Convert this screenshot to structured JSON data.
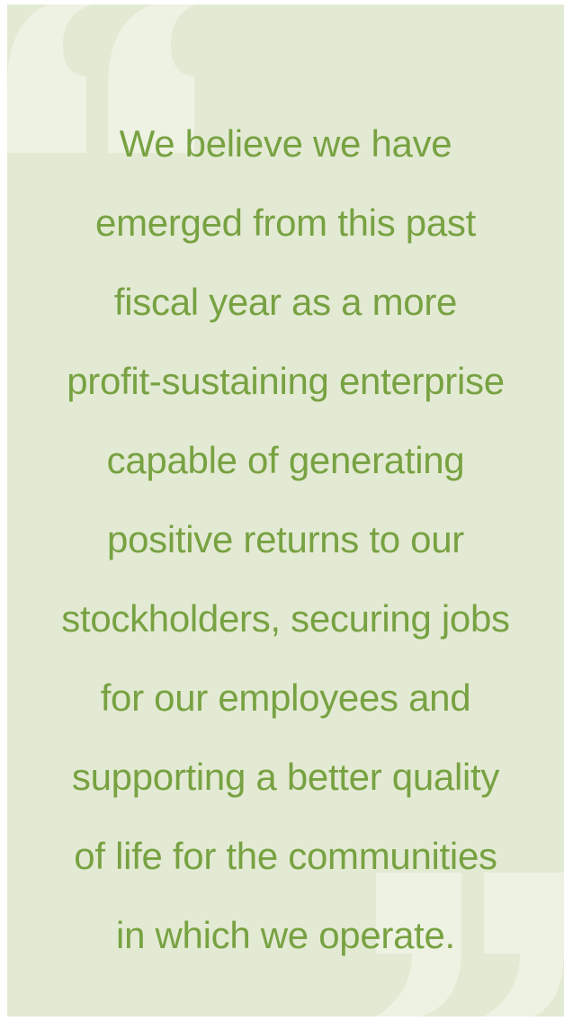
{
  "quote": {
    "lines": [
      "We believe we have",
      "emerged from this past",
      "fiscal year as a more",
      "profit-sustaining enterprise",
      "capable of generating",
      "positive returns to our",
      "stockholders, securing jobs",
      "for our employees and",
      "supporting a better quality",
      "of life for the communities",
      "in which we operate."
    ]
  }
}
